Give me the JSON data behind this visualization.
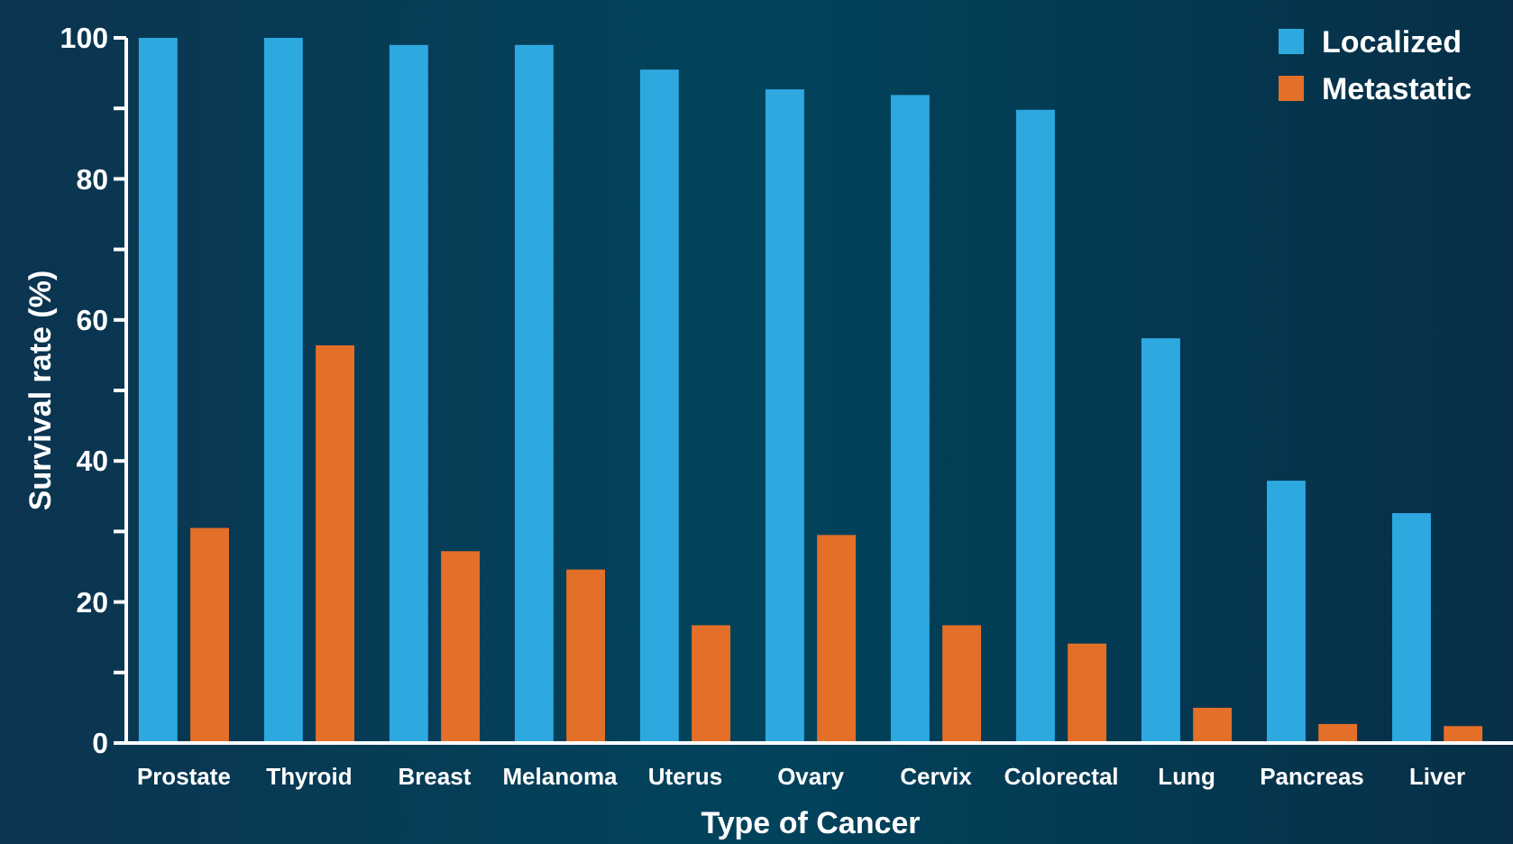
{
  "chart_data": {
    "type": "bar",
    "xlabel": "Type of Cancer",
    "ylabel": "Survival rate (%)",
    "categories": [
      "Prostate",
      "Thyroid",
      "Breast",
      "Melanoma",
      "Uterus",
      "Ovary",
      "Cervix",
      "Colorectal",
      "Lung",
      "Pancreas",
      "Liver"
    ],
    "series": [
      {
        "name": "Localized",
        "color": "#2ea9e0",
        "values": [
          100,
          100,
          99,
          99,
          95.5,
          92.7,
          91.9,
          89.8,
          57.4,
          37.2,
          32.6
        ]
      },
      {
        "name": "Metastatic",
        "color": "#e36f28",
        "values": [
          30.5,
          56.4,
          27.2,
          24.6,
          16.7,
          29.5,
          16.7,
          14.1,
          5.0,
          2.7,
          2.4
        ]
      }
    ],
    "ylim": [
      0,
      100
    ],
    "yticks": [
      0,
      {
        "value": 10,
        "label": null
      },
      20,
      {
        "value": 30,
        "label": null
      },
      40,
      {
        "value": 50,
        "label": null
      },
      60,
      {
        "value": 70,
        "label": null
      },
      80,
      {
        "value": 90,
        "label": null
      },
      100
    ],
    "grid": false,
    "legend": "top right"
  }
}
